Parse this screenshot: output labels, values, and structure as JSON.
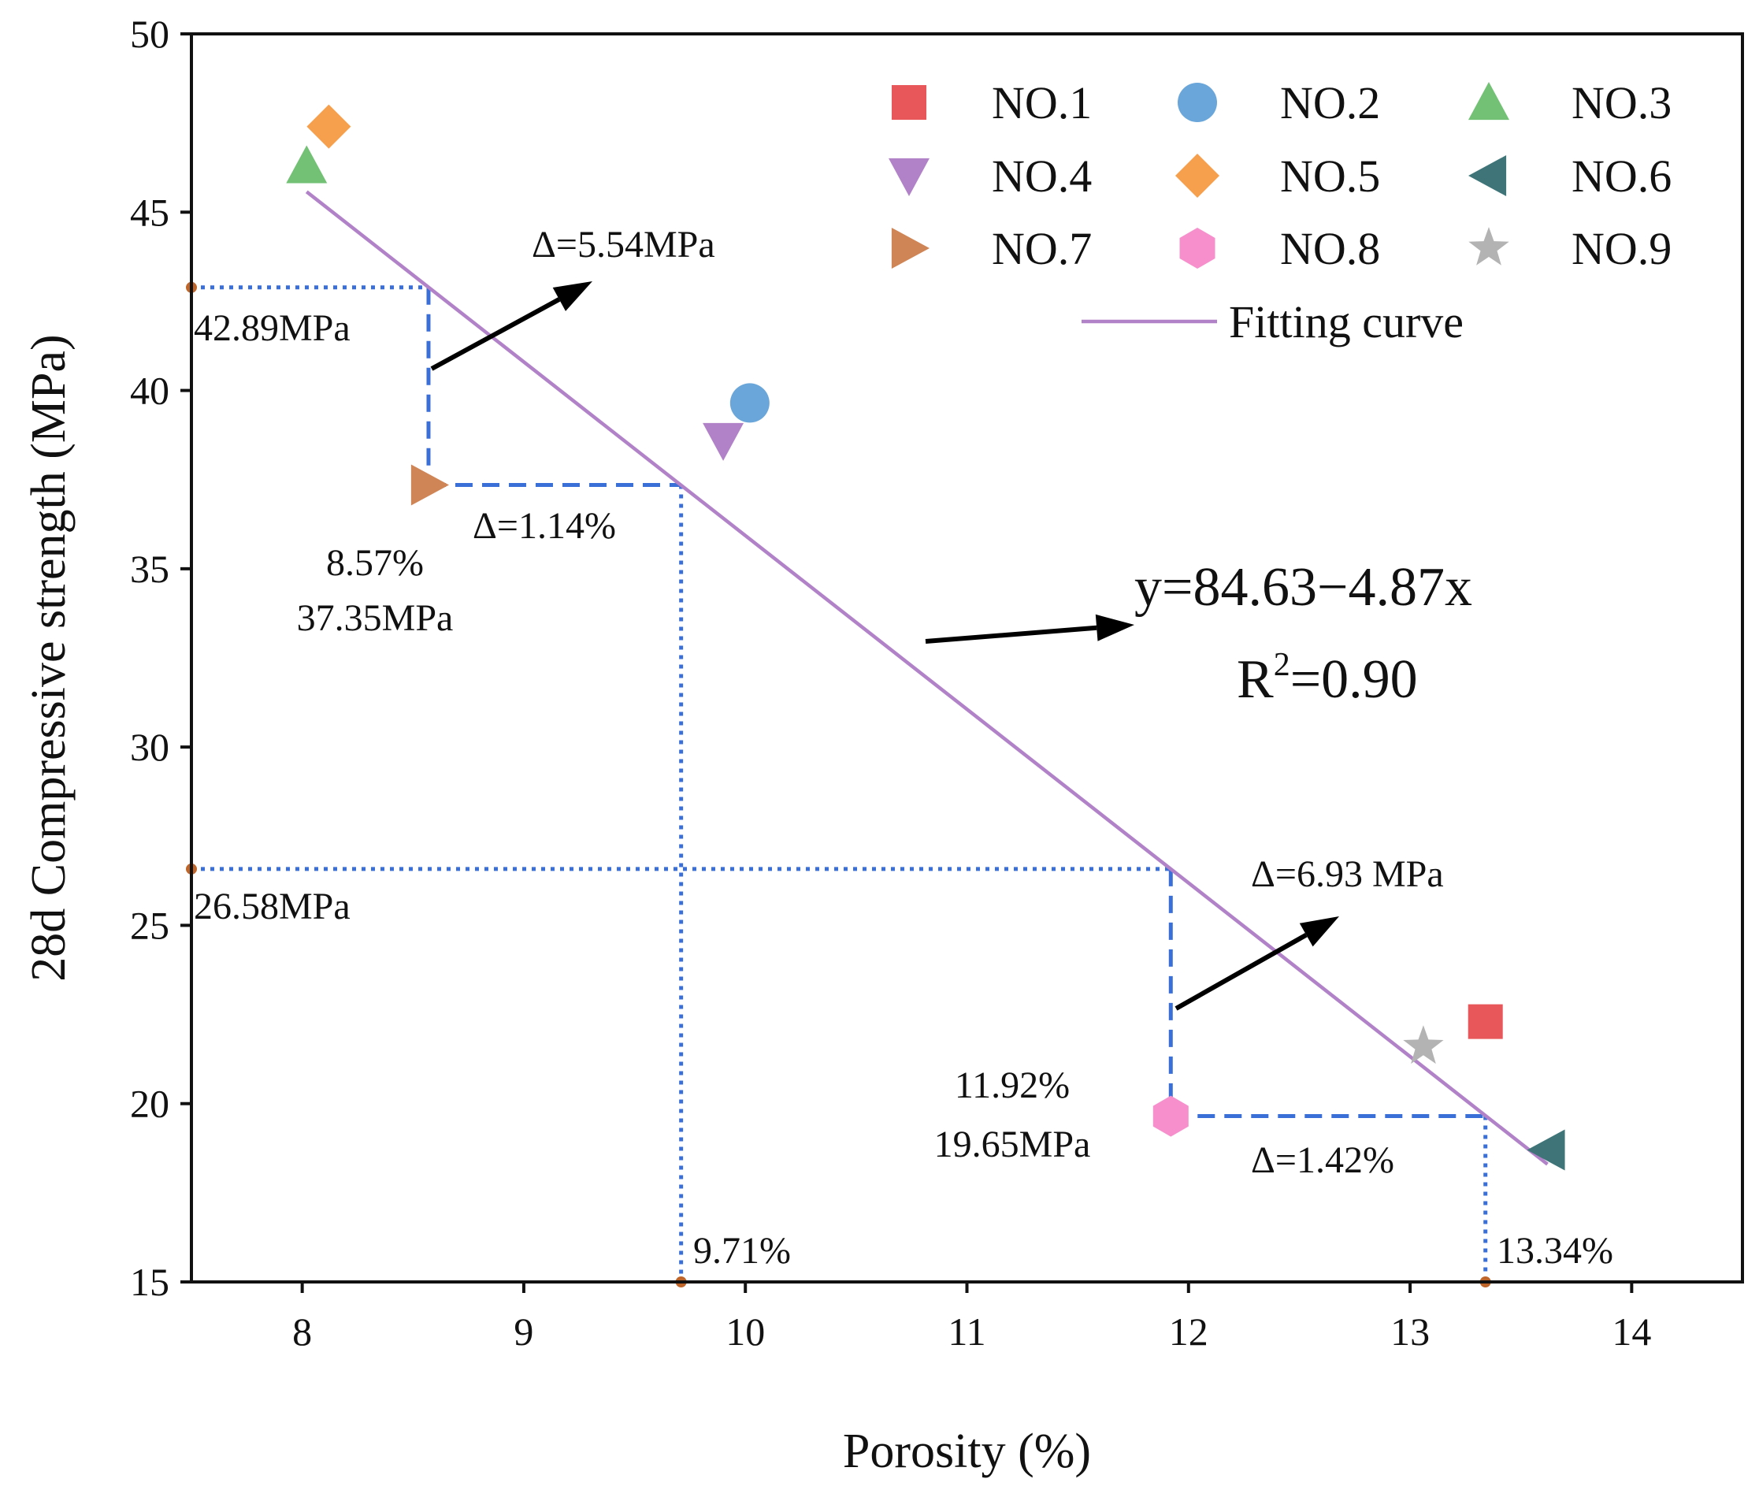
{
  "chart_data": {
    "type": "scatter",
    "title": "",
    "xlabel": "Porosity (%)",
    "ylabel": "28d Compressive strength (MPa)",
    "xlim": [
      7.5,
      14.5
    ],
    "ylim": [
      15,
      50
    ],
    "xticks": [
      8,
      9,
      10,
      11,
      12,
      13,
      14
    ],
    "yticks": [
      15,
      20,
      25,
      30,
      35,
      40,
      45,
      50
    ],
    "grid": false,
    "legend_position": "top-right",
    "series": [
      {
        "name": "NO.1",
        "marker": "square",
        "color": "#e8585a",
        "x": 13.34,
        "y": 22.3
      },
      {
        "name": "NO.2",
        "marker": "circle",
        "color": "#6aa6d9",
        "x": 10.02,
        "y": 39.65
      },
      {
        "name": "NO.3",
        "marker": "triangle-up",
        "color": "#72c175",
        "x": 8.02,
        "y": 46.3
      },
      {
        "name": "NO.4",
        "marker": "triangle-down",
        "color": "#b182c8",
        "x": 9.9,
        "y": 38.6
      },
      {
        "name": "NO.5",
        "marker": "diamond",
        "color": "#f6a04d",
        "x": 8.12,
        "y": 47.4
      },
      {
        "name": "NO.6",
        "marker": "triangle-left",
        "color": "#3f7578",
        "x": 13.62,
        "y": 18.7
      },
      {
        "name": "NO.7",
        "marker": "triangle-right",
        "color": "#cf8556",
        "x": 8.57,
        "y": 37.35
      },
      {
        "name": "NO.8",
        "marker": "hexagon",
        "color": "#f68fcb",
        "x": 11.92,
        "y": 19.65
      },
      {
        "name": "NO.9",
        "marker": "star",
        "color": "#b3b3b3",
        "x": 13.06,
        "y": 21.6
      }
    ],
    "fit": {
      "name": "Fitting curve",
      "color": "#b182c8",
      "intercept": 84.63,
      "slope": -4.87,
      "x_range": [
        8.02,
        13.62
      ],
      "equation": "y=84.63−4.87x",
      "r2_prefix": "R",
      "r2_sup": "2",
      "r2_suffix": "=0.90"
    },
    "annotations": {
      "delta_mpa_upper": "Δ=5.54MPa",
      "delta_pct_upper": "Δ=1.14%",
      "delta_mpa_lower": "Δ=6.93 MPa",
      "delta_pct_lower": "Δ=1.42%",
      "label_42": "42.89MPa",
      "label_26": "26.58MPa",
      "label_971": "9.71%",
      "label_1334": "13.34%",
      "label_857": "8.57%",
      "label_3735": "37.35MPa",
      "label_1192": "11.92%",
      "label_1965": "19.65MPa"
    },
    "reference_points": {
      "upper_ref_y": 42.89,
      "upper_point_x": 8.57,
      "upper_point_y": 37.35,
      "upper_fit_x": 9.71,
      "lower_ref_y": 26.58,
      "lower_point_x": 11.92,
      "lower_point_y": 19.65,
      "lower_fit_x": 13.34
    },
    "colors": {
      "guide_dotted": "#3a6fd8",
      "guide_dashed": "#3a6fd8",
      "ref_dot": "#c0652a",
      "arrow": "#000000"
    }
  }
}
